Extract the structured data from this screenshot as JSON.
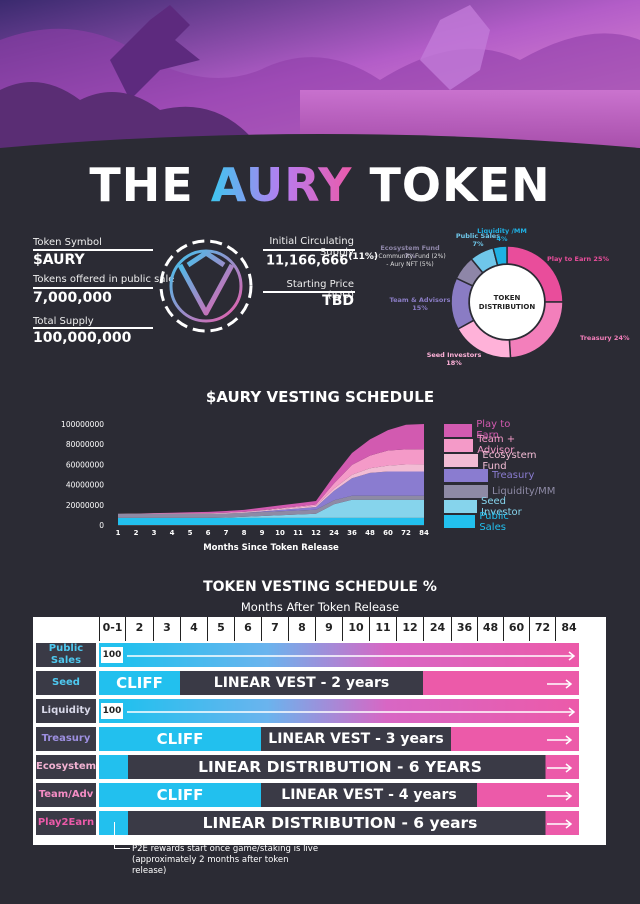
{
  "title": {
    "part1": "THE",
    "part2": "AURY",
    "part3": "TOKEN"
  },
  "token_info": {
    "symbol_label": "Token Symbol",
    "symbol_value": "$AURY",
    "public_sale_label": "Tokens offered in public sale",
    "public_sale_value": "7,000,000",
    "total_supply_label": "Total Supply",
    "total_supply_value": "100,000,000",
    "circ_label": "Initial Circulating Supply",
    "circ_value": "11,166,666",
    "circ_pct": "(11%)",
    "price_label": "Starting Price (IDO)",
    "price_value": "TBD"
  },
  "distribution": {
    "center_label": [
      "TOKEN",
      "DISTRIBUTION"
    ],
    "slices": [
      {
        "name": "Play to Earn",
        "pct": 25,
        "label": "Play to Earn 25%",
        "color": "#e94d9b"
      },
      {
        "name": "Treasury",
        "pct": 24,
        "label": "Treasury 24%",
        "color": "#f37fbb"
      },
      {
        "name": "Seed Investors",
        "pct": 18,
        "label": "Seed Investors 18%",
        "color": "#ffb2d9"
      },
      {
        "name": "Team & Advisors",
        "pct": 15,
        "label": "Team & Advisors 15%",
        "color": "#8a7cc4"
      },
      {
        "name": "Ecosystem Fund",
        "pct": 7,
        "label": "Ecosystem Fund 7%",
        "color": "#8e86a8"
      },
      {
        "name": "Public Sales",
        "pct": 7,
        "label": "Public Sales 7%",
        "color": "#6fc7ea"
      },
      {
        "name": "Liquidity/MM",
        "pct": 4,
        "label": "Liquidity /MM 4%",
        "color": "#1fb0e3"
      }
    ],
    "sub_labels": [
      "- Community Fund (2%)",
      "- Aury NFT (5%)"
    ]
  },
  "chart_data": {
    "type": "area",
    "title": "$AURY VESTING SCHEDULE",
    "xlabel": "Months Since Token Release",
    "ylabel": "",
    "categories": [
      "1",
      "2",
      "3",
      "4",
      "5",
      "6",
      "7",
      "8",
      "9",
      "10",
      "11",
      "12",
      "24",
      "36",
      "48",
      "60",
      "72",
      "84"
    ],
    "ylim": [
      0,
      100000000
    ],
    "yticks": [
      0,
      20000000,
      40000000,
      60000000,
      80000000,
      100000000
    ],
    "yticklabels": [
      "0",
      "20000000",
      "40000000",
      "60000000",
      "80000000",
      "100000000"
    ],
    "series": [
      {
        "name": "Public Sales",
        "color": "#22c0ee",
        "values": [
          7000000,
          7000000,
          7000000,
          7000000,
          7000000,
          7000000,
          7000000,
          7000000,
          7000000,
          7000000,
          7000000,
          7000000,
          7000000,
          7000000,
          7000000,
          7000000,
          7000000,
          7000000
        ]
      },
      {
        "name": "Seed Investor",
        "color": "#86d4ec",
        "values": [
          0,
          0,
          0,
          0,
          0,
          0,
          375000,
          1125000,
          1875000,
          2625000,
          3375000,
          4125000,
          13500000,
          18000000,
          18000000,
          18000000,
          18000000,
          18000000
        ]
      },
      {
        "name": "Liquidity/MM",
        "color": "#8e8aa5",
        "values": [
          4000000,
          4000000,
          4000000,
          4000000,
          4000000,
          4000000,
          4000000,
          4000000,
          4000000,
          4000000,
          4000000,
          4000000,
          4000000,
          4000000,
          4000000,
          4000000,
          4000000,
          4000000
        ]
      },
      {
        "name": "Treasury",
        "color": "#8a7cd0",
        "values": [
          0,
          0,
          0,
          0,
          0,
          0,
          0,
          0,
          667000,
          1330000,
          2000000,
          2670000,
          9330000,
          17300000,
          22600000,
          24000000,
          24000000,
          24000000
        ]
      },
      {
        "name": "Ecosystem Fund",
        "color": "#f2bcd4",
        "values": [
          167000,
          262000,
          357000,
          452000,
          547000,
          642000,
          737000,
          832000,
          927000,
          1020000,
          1120000,
          1210000,
          2350000,
          3490000,
          4640000,
          5780000,
          6900000,
          7000000
        ]
      },
      {
        "name": "Team + Advisor",
        "color": "#f49ac8",
        "values": [
          0,
          0,
          0,
          0,
          0,
          0,
          0,
          0,
          312000,
          625000,
          937000,
          1250000,
          5000000,
          9690000,
          12500000,
          15000000,
          15000000,
          15000000
        ]
      },
      {
        "name": "Play to Earn",
        "color": "#d25ab0",
        "values": [
          0,
          0,
          350000,
          700000,
          1040000,
          1390000,
          1740000,
          2080000,
          2430000,
          2780000,
          3130000,
          3470000,
          7640000,
          11800000,
          16000000,
          20100000,
          24300000,
          25000000
        ]
      }
    ],
    "legend_order": [
      "Play to Earn",
      "Team + Advisor",
      "Ecosystem Fund",
      "Treasury",
      "Liquidity/MM",
      "Seed Investor",
      "Public Sales"
    ],
    "legend_position": "right"
  },
  "schedule": {
    "title": "TOKEN VESTING SCHEDULE %",
    "subtitle": "Months After Token Release",
    "columns": [
      "0-1",
      "2",
      "3",
      "4",
      "5",
      "6",
      "7",
      "8",
      "9",
      "10",
      "11",
      "12",
      "24",
      "36",
      "48",
      "60",
      "72",
      "84"
    ],
    "rows": [
      {
        "label": "Public\nSales",
        "label_color": "#4ec9f0",
        "badge": "100",
        "cliff": "",
        "bar_text": ""
      },
      {
        "label": "Seed",
        "label_color": "#4ec9f0",
        "badge": "",
        "cliff": "CLIFF",
        "bar_text": "LINEAR VEST - 2 years"
      },
      {
        "label": "Liquidity",
        "label_color": "#d8d8e8",
        "badge": "100",
        "cliff": "",
        "bar_text": ""
      },
      {
        "label": "Treasury",
        "label_color": "#9d8fe0",
        "badge": "",
        "cliff": "CLIFF",
        "bar_text": "LINEAR VEST - 3 years"
      },
      {
        "label": "Ecosystem",
        "label_color": "#f2b2d2",
        "badge": "",
        "cliff": "",
        "bar_text": "LINEAR DISTRIBUTION - 6 YEARS"
      },
      {
        "label": "Team/Adv",
        "label_color": "#f48cc4",
        "badge": "",
        "cliff": "CLIFF",
        "bar_text": "LINEAR VEST - 4 years"
      },
      {
        "label": "Play2Earn",
        "label_color": "#ec5aa9",
        "badge": "",
        "cliff": "",
        "bar_text": "LINEAR DISTRIBUTION - 6 years"
      }
    ],
    "note": [
      "P2E rewards start once game/staking is live",
      "(approximately 2 months after token",
      "release)"
    ]
  }
}
